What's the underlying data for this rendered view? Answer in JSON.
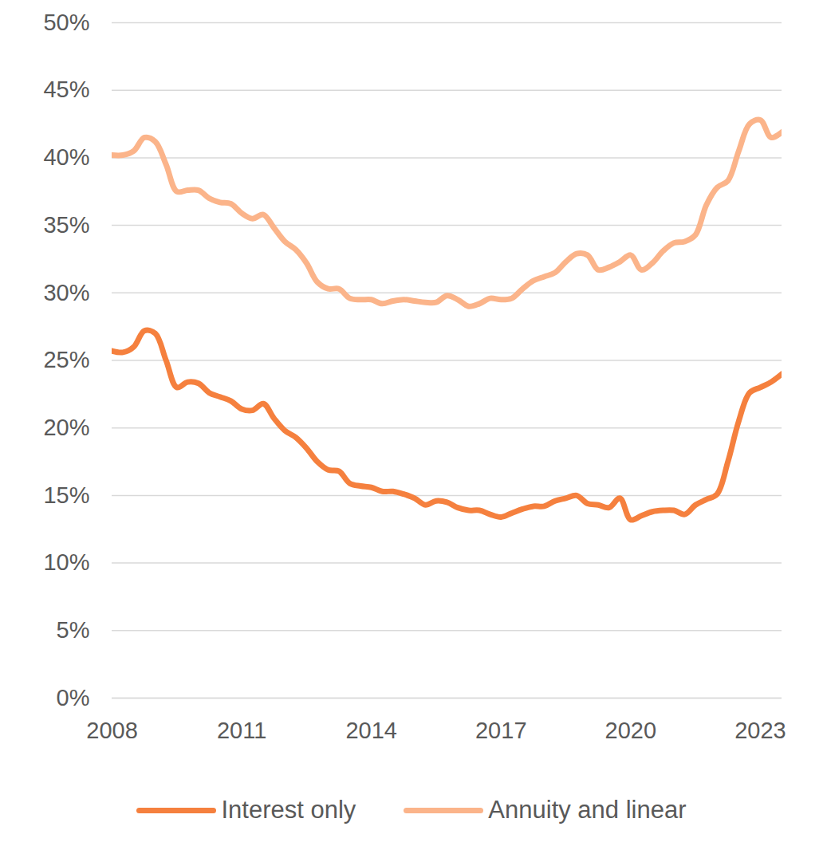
{
  "chart_data": {
    "type": "line",
    "x": [
      2008,
      2008.25,
      2008.5,
      2008.75,
      2009,
      2009.25,
      2009.5,
      2009.75,
      2010,
      2010.25,
      2010.5,
      2010.75,
      2011,
      2011.25,
      2011.5,
      2011.75,
      2012,
      2012.25,
      2012.5,
      2012.75,
      2013,
      2013.25,
      2013.5,
      2013.75,
      2014,
      2014.25,
      2014.5,
      2014.75,
      2015,
      2015.25,
      2015.5,
      2015.75,
      2016,
      2016.25,
      2016.5,
      2016.75,
      2017,
      2017.25,
      2017.5,
      2017.75,
      2018,
      2018.25,
      2018.5,
      2018.75,
      2019,
      2019.25,
      2019.5,
      2019.75,
      2020,
      2020.25,
      2020.5,
      2020.75,
      2021,
      2021.25,
      2021.5,
      2021.75,
      2022,
      2022.25,
      2022.5,
      2022.75,
      2023,
      2023.25,
      2023.5
    ],
    "series": [
      {
        "name": "Interest only",
        "color": "#f5803e",
        "values": [
          25.7,
          25.6,
          26.0,
          27.2,
          27.0,
          25.0,
          23.0,
          23.4,
          23.3,
          22.6,
          22.3,
          22.0,
          21.4,
          21.3,
          21.8,
          20.7,
          19.8,
          19.3,
          18.5,
          17.5,
          16.9,
          16.8,
          15.9,
          15.7,
          15.6,
          15.3,
          15.3,
          15.1,
          14.8,
          14.3,
          14.6,
          14.5,
          14.1,
          13.9,
          13.9,
          13.6,
          13.4,
          13.7,
          14.0,
          14.2,
          14.2,
          14.6,
          14.8,
          15.0,
          14.4,
          14.3,
          14.1,
          14.8,
          13.2,
          13.5,
          13.8,
          13.9,
          13.9,
          13.6,
          14.3,
          14.7,
          15.1,
          17.5,
          20.5,
          22.6,
          23.0,
          23.4,
          24.0
        ]
      },
      {
        "name": "Annuity and linear",
        "color": "#fbb48a",
        "values": [
          40.2,
          40.2,
          40.5,
          41.5,
          41.2,
          39.5,
          37.5,
          37.6,
          37.6,
          37.0,
          36.7,
          36.6,
          35.9,
          35.5,
          35.8,
          34.8,
          33.8,
          33.2,
          32.2,
          30.8,
          30.3,
          30.3,
          29.6,
          29.5,
          29.5,
          29.2,
          29.4,
          29.5,
          29.4,
          29.3,
          29.3,
          29.8,
          29.5,
          29.0,
          29.2,
          29.6,
          29.5,
          29.6,
          30.3,
          30.9,
          31.2,
          31.5,
          32.3,
          32.9,
          32.8,
          31.7,
          31.9,
          32.3,
          32.8,
          31.7,
          32.2,
          33.1,
          33.7,
          33.8,
          34.3,
          36.5,
          37.8,
          38.3,
          40.5,
          42.5,
          42.8,
          41.5,
          41.9
        ]
      }
    ],
    "xlim": [
      2008,
      2023.5
    ],
    "xticks": [
      2008,
      2011,
      2014,
      2017,
      2020,
      2023
    ],
    "ylim": [
      0,
      50
    ],
    "yticks": [
      {
        "value": 0,
        "label": "0%"
      },
      {
        "value": 5,
        "label": "5%"
      },
      {
        "value": 10,
        "label": "10%"
      },
      {
        "value": 15,
        "label": "15%"
      },
      {
        "value": 20,
        "label": "20%"
      },
      {
        "value": 25,
        "label": "25%"
      },
      {
        "value": 30,
        "label": "30%"
      },
      {
        "value": 35,
        "label": "35%"
      },
      {
        "value": 40,
        "label": "40%"
      },
      {
        "value": 45,
        "label": "45%"
      },
      {
        "value": 50,
        "label": "50%"
      }
    ],
    "grid": true,
    "legend": "bottom"
  }
}
